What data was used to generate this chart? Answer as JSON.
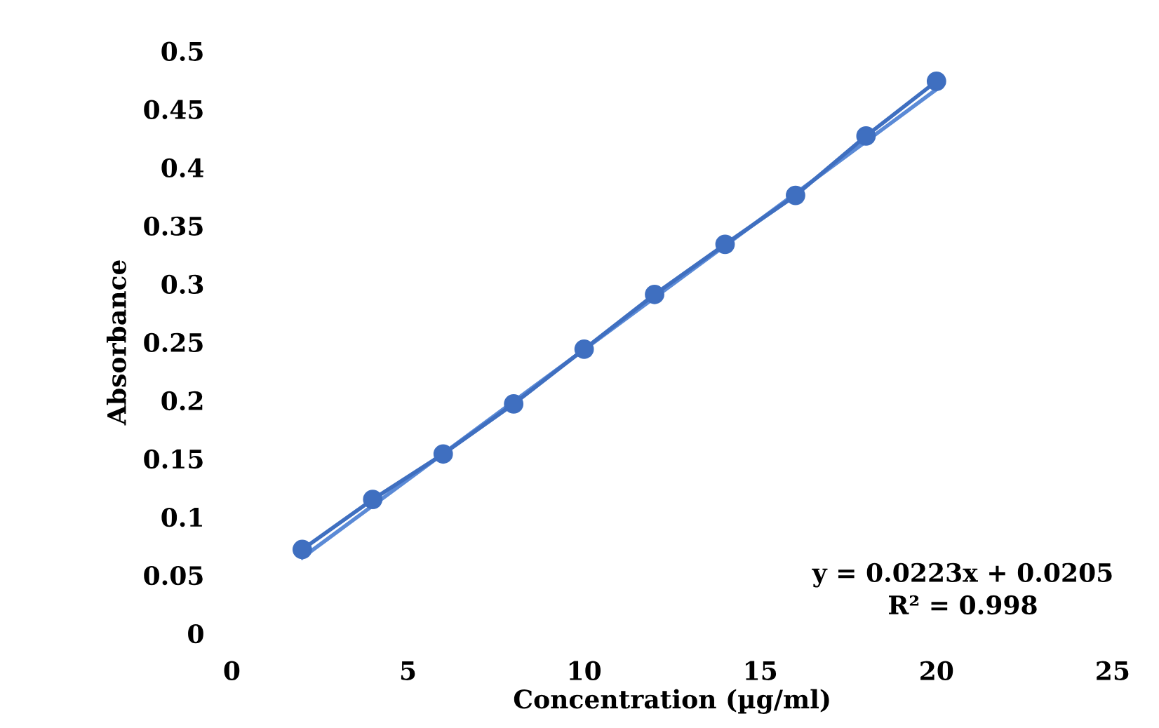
{
  "chart_data": {
    "type": "line",
    "xlabel": "Concentration (µg/ml)",
    "ylabel": "Absorbance",
    "series": [
      {
        "color": "#3f6fc0",
        "marker": "circle",
        "x": [
          2,
          4,
          6,
          8,
          10,
          12,
          14,
          16,
          18,
          20
        ],
        "values": [
          0.072,
          0.115,
          0.154,
          0.197,
          0.244,
          0.291,
          0.334,
          0.376,
          0.427,
          0.474
        ]
      },
      {
        "color": "#5b8ad6",
        "marker": "none",
        "x": [
          2,
          20
        ],
        "values": [
          0.065,
          0.467
        ]
      }
    ],
    "xlim": [
      0,
      25
    ],
    "xticks": [
      0,
      5,
      10,
      15,
      20,
      25
    ],
    "ylim": [
      0,
      0.5
    ],
    "yticks": [
      0,
      0.05,
      0.1,
      0.15,
      0.2,
      0.25,
      0.3,
      0.35,
      0.4,
      0.45,
      0.5
    ],
    "grid": false,
    "legend": false,
    "annotations": [
      "y = 0.0223x + 0.0205",
      "R² = 0.998"
    ]
  }
}
